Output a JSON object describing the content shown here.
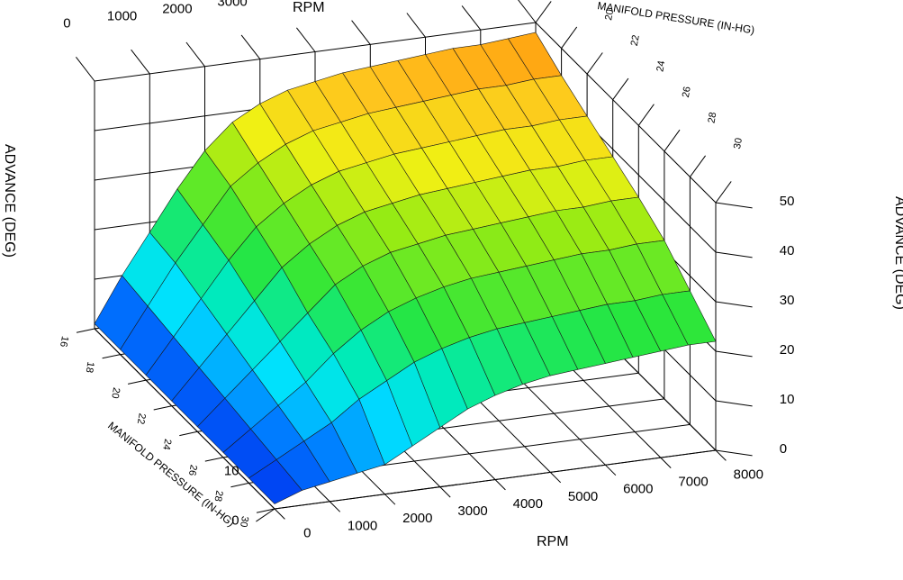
{
  "chart_data": {
    "type": "surface3d",
    "x_axis": {
      "label": "RPM",
      "ticks": [
        0,
        1000,
        2000,
        3000,
        4000,
        5000,
        6000,
        7000,
        8000
      ],
      "range": [
        0,
        8000
      ]
    },
    "y_axis": {
      "label": "MANIFOLD PRESSURE (IN-HG)",
      "ticks": [
        16,
        18,
        20,
        22,
        24,
        26,
        28,
        30
      ],
      "range": [
        16,
        30
      ]
    },
    "z_axis": {
      "label": "ADVANCE (DEG)",
      "ticks": [
        0,
        10,
        20,
        30,
        40,
        50
      ],
      "range": [
        0,
        50
      ]
    },
    "grid": true,
    "rpm": [
      0,
      500,
      1000,
      1500,
      2000,
      2500,
      3000,
      3500,
      4000,
      4500,
      5000,
      5500,
      6000,
      6500,
      7000,
      7500,
      8000
    ],
    "map": [
      16,
      18,
      20,
      22,
      24,
      26,
      28,
      30
    ],
    "advance": [
      [
        1,
        10,
        18,
        26,
        33,
        38,
        41,
        43,
        44,
        45,
        45.5,
        46,
        46.5,
        47,
        47,
        47.5,
        48
      ],
      [
        1,
        9,
        17,
        24,
        31,
        35,
        38,
        40,
        41,
        42,
        42.5,
        43,
        43.5,
        44,
        44,
        44.5,
        44.5
      ],
      [
        1,
        8,
        15,
        22,
        28,
        32,
        35,
        37,
        38,
        39,
        39.5,
        40,
        40.5,
        41,
        41,
        41.5,
        41.5
      ],
      [
        1,
        7,
        13,
        19,
        25,
        29,
        32,
        34,
        35,
        36,
        36.5,
        37,
        37.5,
        38,
        38,
        38.5,
        38.5
      ],
      [
        1,
        6,
        11,
        16,
        21,
        26,
        29,
        31,
        32,
        33,
        33.5,
        34,
        34.5,
        35,
        35,
        35.5,
        35.5
      ],
      [
        1,
        5,
        9,
        13,
        18,
        22,
        25,
        27,
        28.5,
        29.5,
        30,
        30.5,
        31,
        31.5,
        31.5,
        32,
        32
      ],
      [
        1,
        4,
        7,
        10,
        14,
        17,
        20,
        22,
        23.5,
        24.5,
        25,
        25.5,
        26,
        26.5,
        26.5,
        27,
        27
      ],
      [
        1,
        3,
        4,
        5,
        6,
        9,
        12,
        15,
        17,
        18.5,
        19.5,
        20,
        20.5,
        21,
        21.5,
        22,
        22
      ]
    ]
  }
}
